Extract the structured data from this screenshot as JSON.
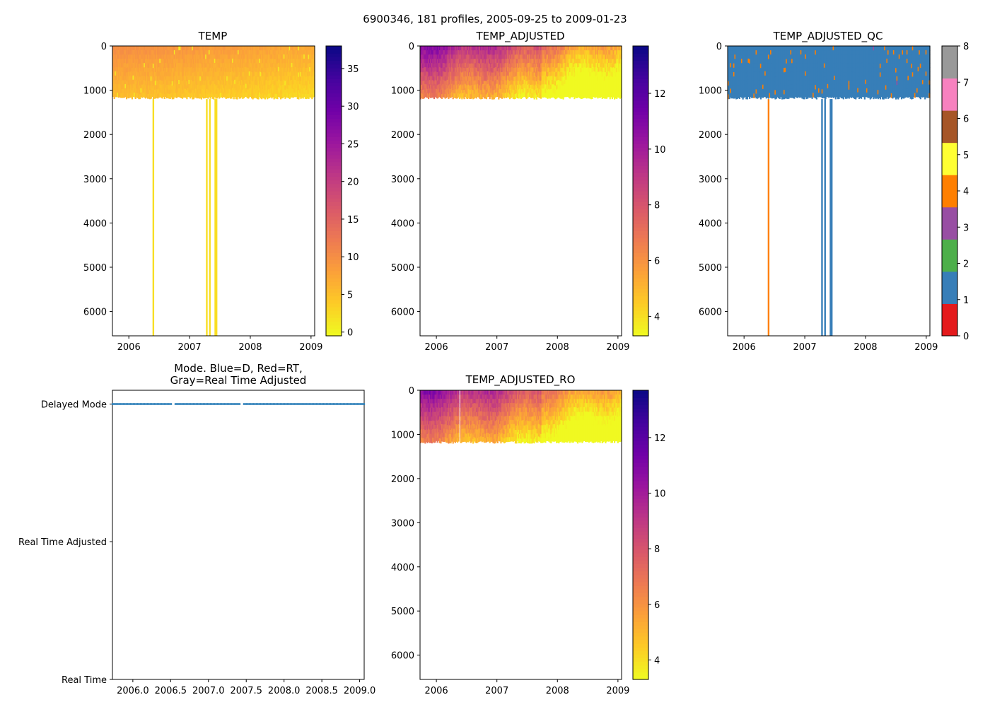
{
  "figure": {
    "title": "6900346, 181 profiles, 2005-09-25 to 2009-01-23",
    "colors": {
      "plasma_stops": [
        "#f0f921",
        "#fdca26",
        "#fb9f3a",
        "#ed7953",
        "#d8576b",
        "#bd3786",
        "#9c179e",
        "#7201a8",
        "#46039f",
        "#0d0887"
      ],
      "qc_classes": [
        "#e41a1c",
        "#377eb8",
        "#4daf4a",
        "#984ea3",
        "#ff7f00",
        "#ffff33",
        "#a65628",
        "#f781bf",
        "#999999"
      ],
      "mode_marker": "#1f77b4"
    }
  },
  "chart_data": [
    {
      "id": "temp",
      "type": "heatmap",
      "title": "TEMP",
      "x_ticks": [
        "2006",
        "2007",
        "2008",
        "2009"
      ],
      "x_tick_values": [
        2006.0,
        2007.0,
        2008.0,
        2009.0
      ],
      "xlim": [
        2005.73,
        2009.06
      ],
      "y_ticks": [
        "0",
        "1000",
        "2000",
        "3000",
        "4000",
        "5000",
        "6000"
      ],
      "y_tick_values": [
        0,
        1000,
        2000,
        3000,
        4000,
        5000,
        6000
      ],
      "ylim": [
        6550,
        0
      ],
      "main_depth": 1200,
      "deep_profiles": [
        2006.39,
        2007.27,
        2007.32,
        2007.41,
        2007.43
      ],
      "colorbar": {
        "cmap": "plasma_r",
        "range": [
          -0.5,
          38
        ],
        "ticks": [
          "0",
          "5",
          "10",
          "15",
          "20",
          "25",
          "30",
          "35"
        ],
        "tick_values": [
          0,
          5,
          10,
          15,
          20,
          25,
          30,
          35
        ]
      }
    },
    {
      "id": "temp_adjusted",
      "type": "heatmap",
      "title": "TEMP_ADJUSTED",
      "x_ticks": [
        "2006",
        "2007",
        "2008",
        "2009"
      ],
      "x_tick_values": [
        2006.0,
        2007.0,
        2008.0,
        2009.0
      ],
      "xlim": [
        2005.73,
        2009.06
      ],
      "y_ticks": [
        "0",
        "1000",
        "2000",
        "3000",
        "4000",
        "5000",
        "6000"
      ],
      "y_tick_values": [
        0,
        1000,
        2000,
        3000,
        4000,
        5000,
        6000
      ],
      "ylim": [
        6550,
        0
      ],
      "main_depth": 1200,
      "colorbar": {
        "cmap": "plasma_r",
        "range": [
          3.3,
          13.7
        ],
        "ticks": [
          "4",
          "6",
          "8",
          "10",
          "12"
        ],
        "tick_values": [
          4,
          6,
          8,
          10,
          12
        ]
      }
    },
    {
      "id": "temp_adjusted_qc",
      "type": "heatmap",
      "title": "TEMP_ADJUSTED_QC",
      "x_ticks": [
        "2006",
        "2007",
        "2008",
        "2009"
      ],
      "x_tick_values": [
        2006.0,
        2007.0,
        2008.0,
        2009.0
      ],
      "xlim": [
        2005.73,
        2009.06
      ],
      "y_ticks": [
        "0",
        "1000",
        "2000",
        "3000",
        "4000",
        "5000",
        "6000"
      ],
      "y_tick_values": [
        0,
        1000,
        2000,
        3000,
        4000,
        5000,
        6000
      ],
      "ylim": [
        6550,
        0
      ],
      "main_depth": 1200,
      "deep_profiles": [
        2006.39,
        2007.27,
        2007.32,
        2007.41,
        2007.43
      ],
      "colorbar": {
        "cmap": "qc_classes",
        "range": [
          0,
          8
        ],
        "ticks": [
          "0",
          "1",
          "2",
          "3",
          "4",
          "5",
          "6",
          "7",
          "8"
        ],
        "tick_values": [
          0,
          1,
          2,
          3,
          4,
          5,
          6,
          7,
          8
        ]
      }
    },
    {
      "id": "mode",
      "type": "scatter",
      "title_lines": [
        "Mode. Blue=D, Red=RT,",
        "Gray=Real Time Adjusted"
      ],
      "x_ticks": [
        "2006.0",
        "2006.5",
        "2007.0",
        "2007.5",
        "2008.0",
        "2008.5",
        "2009.0"
      ],
      "x_tick_values": [
        2006.0,
        2006.5,
        2007.0,
        2007.5,
        2008.0,
        2008.5,
        2009.0
      ],
      "xlim": [
        2005.73,
        2009.06
      ],
      "y_ticks": [
        "Delayed Mode",
        "Real Time Adjusted",
        "Real Time"
      ],
      "y_tick_values": [
        2,
        1,
        0
      ],
      "ylim": [
        0,
        2.1
      ],
      "series": [
        {
          "name": "Delayed Mode",
          "y": 2,
          "x_start": 2005.73,
          "x_end": 2009.06,
          "count": 181,
          "gaps": [
            [
              2006.52,
              2006.56
            ],
            [
              2007.43,
              2007.46
            ]
          ]
        }
      ]
    },
    {
      "id": "temp_adjusted_ro",
      "type": "heatmap",
      "title": "TEMP_ADJUSTED_RO",
      "x_ticks": [
        "2006",
        "2007",
        "2008",
        "2009"
      ],
      "x_tick_values": [
        2006.0,
        2007.0,
        2008.0,
        2009.0
      ],
      "xlim": [
        2005.73,
        2009.06
      ],
      "y_ticks": [
        "0",
        "1000",
        "2000",
        "3000",
        "4000",
        "5000",
        "6000"
      ],
      "y_tick_values": [
        0,
        1000,
        2000,
        3000,
        4000,
        5000,
        6000
      ],
      "ylim": [
        6550,
        0
      ],
      "main_depth": 1200,
      "gap_profiles": [
        2006.37
      ],
      "colorbar": {
        "cmap": "plasma_r",
        "range": [
          3.3,
          13.7
        ],
        "ticks": [
          "4",
          "6",
          "8",
          "10",
          "12"
        ],
        "tick_values": [
          4,
          6,
          8,
          10,
          12
        ]
      }
    }
  ]
}
